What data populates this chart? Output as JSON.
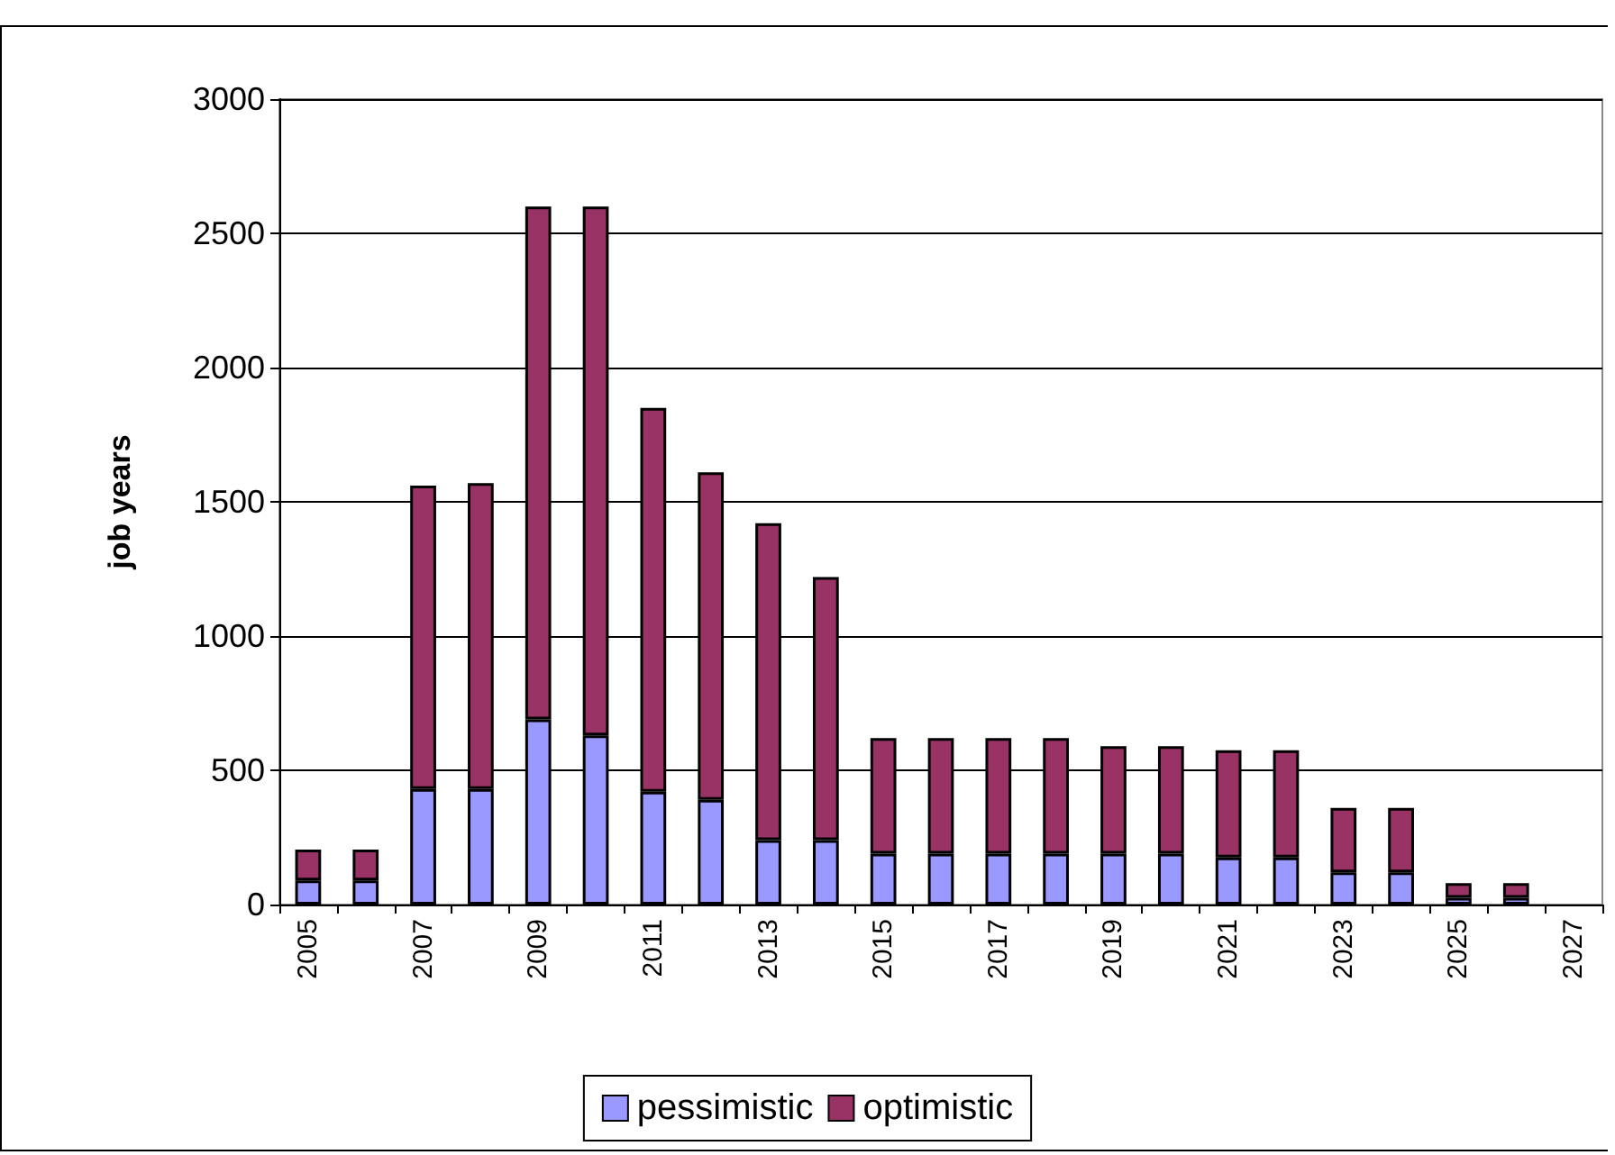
{
  "chart_data": {
    "type": "bar",
    "ylabel": "job years",
    "stacked": true,
    "categories": [
      "2005",
      null,
      "2007",
      null,
      "2009",
      null,
      "2011",
      null,
      "2013",
      null,
      "2015",
      null,
      "2017",
      null,
      "2019",
      null,
      "2021",
      null,
      "2023",
      null,
      "2025",
      null,
      "2027"
    ],
    "series": [
      {
        "name": "pessimistic",
        "color": "#9999ff",
        "values": [
          90,
          90,
          430,
          430,
          690,
          630,
          420,
          390,
          240,
          240,
          190,
          190,
          190,
          190,
          190,
          190,
          175,
          175,
          120,
          120,
          25,
          25,
          null
        ]
      },
      {
        "name": "optimistic",
        "color": "#993366",
        "values": [
          115,
          115,
          1130,
          1140,
          1910,
          1970,
          1430,
          1220,
          1180,
          980,
          430,
          430,
          430,
          430,
          400,
          400,
          400,
          400,
          240,
          240,
          55,
          55,
          null
        ]
      }
    ],
    "ylim": [
      0,
      3000
    ],
    "yticks": [
      0,
      500,
      1000,
      1500,
      2000,
      2500,
      3000
    ],
    "grid": "y",
    "legend": "bottom"
  }
}
